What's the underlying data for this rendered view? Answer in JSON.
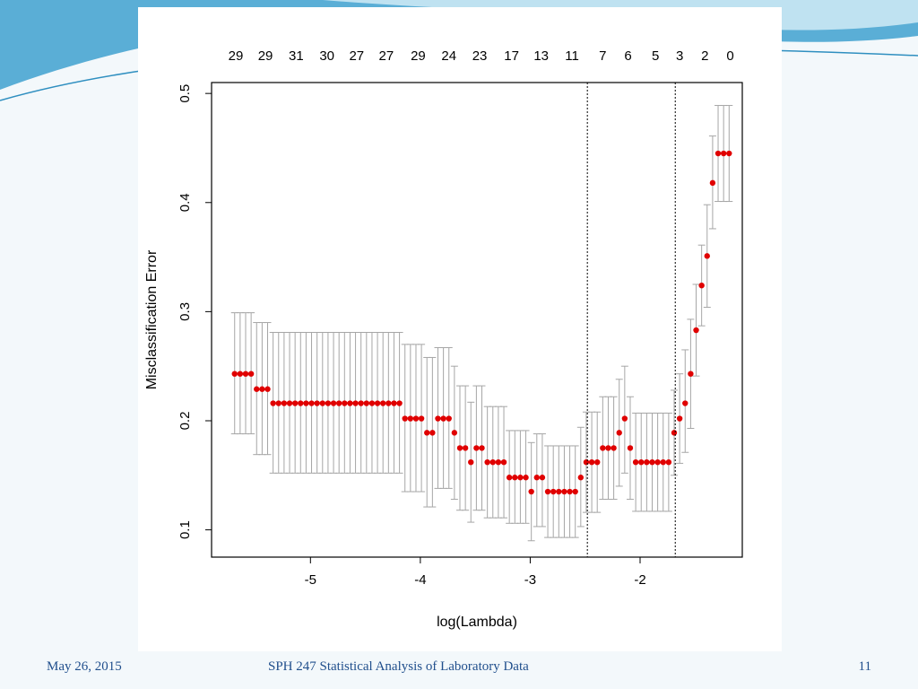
{
  "footer": {
    "date": "May 26, 2015",
    "title": "SPH 247 Statistical Analysis of Laboratory Data",
    "page": "11"
  },
  "colors": {
    "points": "#e00000",
    "error_bars": "#a6a6a6",
    "axes": "#000000",
    "footer_text": "#1f4e8c",
    "banner": "#4aa3cf"
  },
  "chart_data": {
    "type": "scatter",
    "title": "",
    "xlabel": "log(Lambda)",
    "ylabel": "Misclassification Error",
    "xlim": [
      -5.9,
      -1.07
    ],
    "ylim": [
      0.075,
      0.51
    ],
    "xticks": [
      -5,
      -4,
      -3,
      -2
    ],
    "xtick_labels": [
      "-5",
      "-4",
      "-3",
      "-2"
    ],
    "yticks": [
      0.1,
      0.2,
      0.3,
      0.4,
      0.5
    ],
    "ytick_labels": [
      "0.1",
      "0.2",
      "0.3",
      "0.4",
      "0.5"
    ],
    "top_axis_labels": [
      {
        "x": -5.68,
        "label": "29"
      },
      {
        "x": -5.41,
        "label": "29"
      },
      {
        "x": -5.13,
        "label": "31"
      },
      {
        "x": -4.85,
        "label": "30"
      },
      {
        "x": -4.58,
        "label": "27"
      },
      {
        "x": -4.31,
        "label": "27"
      },
      {
        "x": -4.02,
        "label": "29"
      },
      {
        "x": -3.74,
        "label": "24"
      },
      {
        "x": -3.46,
        "label": "23"
      },
      {
        "x": -3.17,
        "label": "17"
      },
      {
        "x": -2.9,
        "label": "13"
      },
      {
        "x": -2.62,
        "label": "11"
      },
      {
        "x": -2.34,
        "label": "7"
      },
      {
        "x": -2.11,
        "label": "6"
      },
      {
        "x": -1.86,
        "label": "5"
      },
      {
        "x": -1.64,
        "label": "3"
      },
      {
        "x": -1.41,
        "label": "2"
      },
      {
        "x": -1.18,
        "label": "0"
      }
    ],
    "vlines": [
      -2.48,
      -1.68
    ],
    "grid": false,
    "series": [
      {
        "x": [
          -5.69,
          -5.64,
          -5.59,
          -5.54,
          -5.49,
          -5.44,
          -5.39,
          -5.34,
          -5.29,
          -5.24,
          -5.19,
          -5.14,
          -5.09,
          -5.04,
          -4.99,
          -4.94,
          -4.89,
          -4.84,
          -4.79,
          -4.74,
          -4.69,
          -4.64,
          -4.59,
          -4.54,
          -4.49,
          -4.44,
          -4.39,
          -4.34,
          -4.29,
          -4.24,
          -4.19,
          -4.14,
          -4.09,
          -4.04,
          -3.99,
          -3.94,
          -3.89,
          -3.84,
          -3.79,
          -3.74,
          -3.69,
          -3.64,
          -3.59,
          -3.54,
          -3.49,
          -3.44,
          -3.39,
          -3.34,
          -3.29,
          -3.24,
          -3.19,
          -3.14,
          -3.09,
          -3.04,
          -2.99,
          -2.94,
          -2.89,
          -2.84,
          -2.79,
          -2.74,
          -2.69,
          -2.64,
          -2.59,
          -2.54,
          -2.49,
          -2.44,
          -2.39,
          -2.34,
          -2.29,
          -2.24,
          -2.19,
          -2.14,
          -2.09,
          -2.04,
          -1.99,
          -1.94,
          -1.89,
          -1.84,
          -1.79,
          -1.74,
          -1.69,
          -1.64,
          -1.59,
          -1.54,
          -1.49,
          -1.44,
          -1.39,
          -1.34,
          -1.29,
          -1.24,
          -1.19
        ],
        "y": [
          0.243,
          0.243,
          0.243,
          0.243,
          0.229,
          0.229,
          0.229,
          0.216,
          0.216,
          0.216,
          0.216,
          0.216,
          0.216,
          0.216,
          0.216,
          0.216,
          0.216,
          0.216,
          0.216,
          0.216,
          0.216,
          0.216,
          0.216,
          0.216,
          0.216,
          0.216,
          0.216,
          0.216,
          0.216,
          0.216,
          0.216,
          0.202,
          0.202,
          0.202,
          0.202,
          0.189,
          0.189,
          0.202,
          0.202,
          0.202,
          0.189,
          0.175,
          0.175,
          0.162,
          0.175,
          0.175,
          0.162,
          0.162,
          0.162,
          0.162,
          0.148,
          0.148,
          0.148,
          0.148,
          0.135,
          0.148,
          0.148,
          0.135,
          0.135,
          0.135,
          0.135,
          0.135,
          0.135,
          0.148,
          0.162,
          0.162,
          0.162,
          0.175,
          0.175,
          0.175,
          0.189,
          0.202,
          0.175,
          0.162,
          0.162,
          0.162,
          0.162,
          0.162,
          0.162,
          0.162,
          0.189,
          0.202,
          0.216,
          0.243,
          0.283,
          0.324,
          0.351,
          0.418,
          0.445,
          0.445,
          0.445
        ],
        "y_lower": [
          0.188,
          0.188,
          0.188,
          0.188,
          0.169,
          0.169,
          0.169,
          0.152,
          0.152,
          0.152,
          0.152,
          0.152,
          0.152,
          0.152,
          0.152,
          0.152,
          0.152,
          0.152,
          0.152,
          0.152,
          0.152,
          0.152,
          0.152,
          0.152,
          0.152,
          0.152,
          0.152,
          0.152,
          0.152,
          0.152,
          0.152,
          0.135,
          0.135,
          0.135,
          0.135,
          0.121,
          0.121,
          0.138,
          0.138,
          0.138,
          0.128,
          0.118,
          0.118,
          0.107,
          0.118,
          0.118,
          0.111,
          0.111,
          0.111,
          0.111,
          0.106,
          0.106,
          0.106,
          0.106,
          0.09,
          0.103,
          0.103,
          0.093,
          0.093,
          0.093,
          0.093,
          0.093,
          0.093,
          0.103,
          0.116,
          0.116,
          0.116,
          0.128,
          0.128,
          0.128,
          0.14,
          0.152,
          0.128,
          0.117,
          0.117,
          0.117,
          0.117,
          0.117,
          0.117,
          0.117,
          0.15,
          0.161,
          0.171,
          0.193,
          0.241,
          0.287,
          0.304,
          0.376,
          0.401,
          0.401,
          0.401
        ],
        "y_upper": [
          0.299,
          0.299,
          0.299,
          0.299,
          0.29,
          0.29,
          0.29,
          0.281,
          0.281,
          0.281,
          0.281,
          0.281,
          0.281,
          0.281,
          0.281,
          0.281,
          0.281,
          0.281,
          0.281,
          0.281,
          0.281,
          0.281,
          0.281,
          0.281,
          0.281,
          0.281,
          0.281,
          0.281,
          0.281,
          0.281,
          0.281,
          0.27,
          0.27,
          0.27,
          0.27,
          0.258,
          0.258,
          0.267,
          0.267,
          0.267,
          0.25,
          0.232,
          0.232,
          0.217,
          0.232,
          0.232,
          0.213,
          0.213,
          0.213,
          0.213,
          0.191,
          0.191,
          0.191,
          0.191,
          0.18,
          0.188,
          0.188,
          0.177,
          0.177,
          0.177,
          0.177,
          0.177,
          0.177,
          0.194,
          0.208,
          0.208,
          0.208,
          0.222,
          0.222,
          0.222,
          0.238,
          0.25,
          0.222,
          0.207,
          0.207,
          0.207,
          0.207,
          0.207,
          0.207,
          0.207,
          0.228,
          0.243,
          0.265,
          0.293,
          0.325,
          0.361,
          0.398,
          0.461,
          0.489,
          0.489,
          0.489
        ]
      }
    ]
  }
}
